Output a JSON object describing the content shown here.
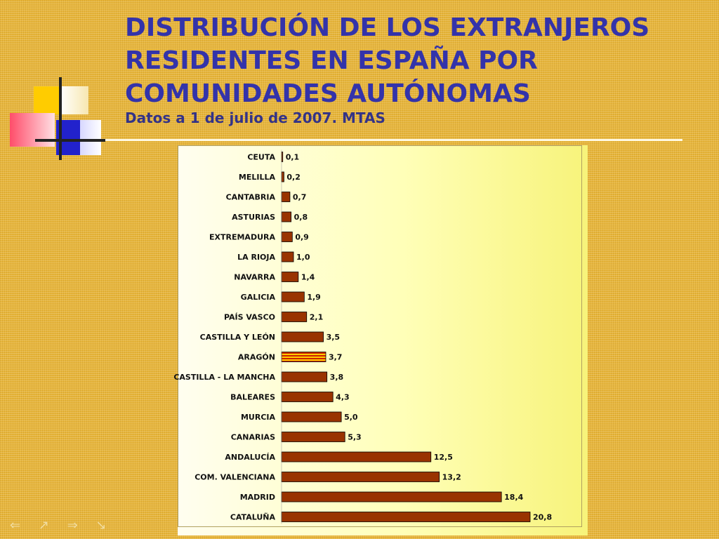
{
  "slide": {
    "title_lines": [
      "DISTRIBUCIÓN DE LOS EXTRANJEROS",
      "RESIDENTES EN ESPAÑA POR",
      "COMUNIDADES AUTÓNOMAS"
    ],
    "subtitle": "Datos a 1 de julio de 2007. MTAS"
  },
  "colors": {
    "title": "#3333aa",
    "bar": "#993300",
    "bar_highlight_red": "#cc2200",
    "bar_highlight_yellow": "#ffcc00"
  },
  "chart_data": {
    "type": "bar",
    "orientation": "horizontal",
    "title": "",
    "xlabel": "",
    "ylabel": "",
    "xlim": [
      0,
      20.8
    ],
    "grid": false,
    "legend": "none",
    "highlight_category": "ARAGÓN",
    "categories": [
      "CEUTA",
      "MELILLA",
      "CANTABRIA",
      "ASTURIAS",
      "EXTREMADURA",
      "LA RIOJA",
      "NAVARRA",
      "GALICIA",
      "PAÍS VASCO",
      "CASTILLA Y LEÓN",
      "ARAGÓN",
      "CASTILLA - LA MANCHA",
      "BALEARES",
      "MURCIA",
      "CANARIAS",
      "ANDALUCÍA",
      "COM. VALENCIANA",
      "MADRID",
      "CATALUÑA"
    ],
    "values": [
      0.1,
      0.2,
      0.7,
      0.8,
      0.9,
      1.0,
      1.4,
      1.9,
      2.1,
      3.5,
      3.7,
      3.8,
      4.3,
      5.0,
      5.3,
      12.5,
      13.2,
      18.4,
      20.8
    ],
    "value_labels": [
      "0,1",
      "0,2",
      "0,7",
      "0,8",
      "0,9",
      "1,0",
      "1,4",
      "1,9",
      "2,1",
      "3,5",
      "3,7",
      "3,8",
      "4,3",
      "5,0",
      "5,3",
      "12,5",
      "13,2",
      "18,4",
      "20,8"
    ]
  },
  "nav": {
    "glyphs": "⇐ ↗ ⇒ ↘"
  }
}
